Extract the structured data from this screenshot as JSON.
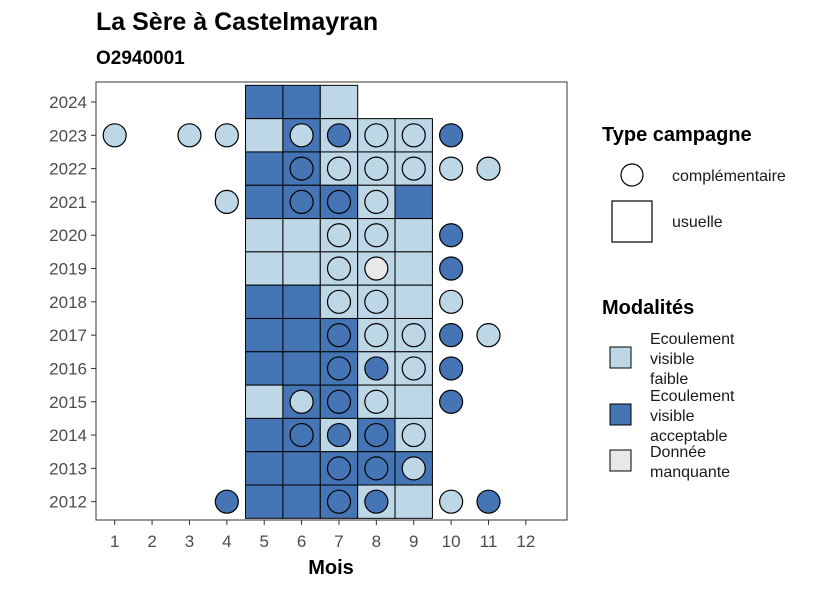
{
  "chart_data": {
    "type": "heatmap",
    "title": "La Sère à Castelmayran",
    "subtitle": "O2940001",
    "xlabel": "Mois",
    "ylabel": "",
    "x_ticks": [
      1,
      2,
      3,
      4,
      5,
      6,
      7,
      8,
      9,
      10,
      11,
      12
    ],
    "y_ticks": [
      2012,
      2013,
      2014,
      2015,
      2016,
      2017,
      2018,
      2019,
      2020,
      2021,
      2022,
      2023,
      2024
    ],
    "xlim": [
      0.5,
      13.1
    ],
    "ylim": [
      2011.45,
      2024.6
    ],
    "grid": false,
    "colors": {
      "Ecoulement visible faible": "#bdd7e7",
      "Ecoulement visible acceptable": "#4575b4",
      "Donnée manquante": "#e8e8e8"
    },
    "legend": {
      "shape_title": "Type campagne",
      "shapes": [
        {
          "key": "complementaire",
          "label": "complémentaire"
        },
        {
          "key": "usuelle",
          "label": "usuelle"
        }
      ],
      "fill_title": "Modalités",
      "fills": [
        {
          "key": "Ecoulement visible faible",
          "lines": [
            "Ecoulement",
            "visible",
            "faible"
          ]
        },
        {
          "key": "Ecoulement visible acceptable",
          "lines": [
            "Ecoulement",
            "visible",
            "acceptable"
          ]
        },
        {
          "key": "Donnée manquante",
          "lines": [
            "Donnée",
            "manquante"
          ]
        }
      ],
      "position": "right"
    },
    "usuelle": [
      {
        "year": 2024,
        "cells": [
          [
            5,
            "A"
          ],
          [
            6,
            "A"
          ],
          [
            7,
            "F"
          ]
        ]
      },
      {
        "year": 2023,
        "cells": [
          [
            5,
            "F"
          ],
          [
            6,
            "A"
          ],
          [
            7,
            "F"
          ],
          [
            8,
            "F"
          ],
          [
            9,
            "F"
          ]
        ]
      },
      {
        "year": 2022,
        "cells": [
          [
            5,
            "A"
          ],
          [
            6,
            "A"
          ],
          [
            7,
            "F"
          ],
          [
            8,
            "F"
          ],
          [
            9,
            "F"
          ]
        ]
      },
      {
        "year": 2021,
        "cells": [
          [
            5,
            "A"
          ],
          [
            6,
            "A"
          ],
          [
            7,
            "A"
          ],
          [
            8,
            "F"
          ],
          [
            9,
            "A"
          ]
        ]
      },
      {
        "year": 2020,
        "cells": [
          [
            5,
            "F"
          ],
          [
            6,
            "F"
          ],
          [
            7,
            "F"
          ],
          [
            8,
            "F"
          ],
          [
            9,
            "F"
          ]
        ]
      },
      {
        "year": 2019,
        "cells": [
          [
            5,
            "F"
          ],
          [
            6,
            "F"
          ],
          [
            7,
            "F"
          ],
          [
            8,
            "F"
          ],
          [
            9,
            "F"
          ]
        ]
      },
      {
        "year": 2018,
        "cells": [
          [
            5,
            "A"
          ],
          [
            6,
            "A"
          ],
          [
            7,
            "F"
          ],
          [
            8,
            "F"
          ],
          [
            9,
            "F"
          ]
        ]
      },
      {
        "year": 2017,
        "cells": [
          [
            5,
            "A"
          ],
          [
            6,
            "A"
          ],
          [
            7,
            "A"
          ],
          [
            8,
            "F"
          ],
          [
            9,
            "F"
          ]
        ]
      },
      {
        "year": 2016,
        "cells": [
          [
            5,
            "A"
          ],
          [
            6,
            "A"
          ],
          [
            7,
            "A"
          ],
          [
            8,
            "F"
          ],
          [
            9,
            "F"
          ]
        ]
      },
      {
        "year": 2015,
        "cells": [
          [
            5,
            "F"
          ],
          [
            6,
            "A"
          ],
          [
            7,
            "A"
          ],
          [
            8,
            "F"
          ],
          [
            9,
            "F"
          ]
        ]
      },
      {
        "year": 2014,
        "cells": [
          [
            5,
            "A"
          ],
          [
            6,
            "A"
          ],
          [
            7,
            "F"
          ],
          [
            8,
            "A"
          ],
          [
            9,
            "F"
          ]
        ]
      },
      {
        "year": 2013,
        "cells": [
          [
            5,
            "A"
          ],
          [
            6,
            "A"
          ],
          [
            7,
            "A"
          ],
          [
            8,
            "A"
          ],
          [
            9,
            "A"
          ]
        ]
      },
      {
        "year": 2012,
        "cells": [
          [
            5,
            "A"
          ],
          [
            6,
            "A"
          ],
          [
            7,
            "A"
          ],
          [
            8,
            "F"
          ],
          [
            9,
            "F"
          ]
        ]
      }
    ],
    "complementaire": [
      {
        "year": 2023,
        "points": [
          [
            1,
            "F"
          ],
          [
            3,
            "F"
          ],
          [
            4,
            "F"
          ],
          [
            6,
            "F"
          ],
          [
            7,
            "A"
          ],
          [
            8,
            "F"
          ],
          [
            9,
            "F"
          ],
          [
            10,
            "A"
          ]
        ]
      },
      {
        "year": 2022,
        "points": [
          [
            6,
            "A"
          ],
          [
            7,
            "F"
          ],
          [
            8,
            "F"
          ],
          [
            9,
            "F"
          ],
          [
            10,
            "F"
          ],
          [
            11,
            "F"
          ]
        ]
      },
      {
        "year": 2021,
        "points": [
          [
            4,
            "F"
          ],
          [
            6,
            "A"
          ],
          [
            7,
            "A"
          ],
          [
            8,
            "F"
          ]
        ]
      },
      {
        "year": 2020,
        "points": [
          [
            7,
            "F"
          ],
          [
            8,
            "F"
          ],
          [
            10,
            "A"
          ]
        ]
      },
      {
        "year": 2019,
        "points": [
          [
            7,
            "F"
          ],
          [
            8,
            "M"
          ],
          [
            10,
            "A"
          ]
        ]
      },
      {
        "year": 2018,
        "points": [
          [
            7,
            "F"
          ],
          [
            8,
            "F"
          ],
          [
            10,
            "F"
          ]
        ]
      },
      {
        "year": 2017,
        "points": [
          [
            7,
            "A"
          ],
          [
            8,
            "F"
          ],
          [
            9,
            "F"
          ],
          [
            10,
            "A"
          ],
          [
            11,
            "F"
          ]
        ]
      },
      {
        "year": 2016,
        "points": [
          [
            7,
            "A"
          ],
          [
            8,
            "A"
          ],
          [
            9,
            "F"
          ],
          [
            10,
            "A"
          ]
        ]
      },
      {
        "year": 2015,
        "points": [
          [
            6,
            "F"
          ],
          [
            7,
            "A"
          ],
          [
            8,
            "F"
          ],
          [
            10,
            "A"
          ]
        ]
      },
      {
        "year": 2014,
        "points": [
          [
            6,
            "A"
          ],
          [
            7,
            "A"
          ],
          [
            8,
            "A"
          ],
          [
            9,
            "F"
          ]
        ]
      },
      {
        "year": 2013,
        "points": [
          [
            7,
            "A"
          ],
          [
            8,
            "A"
          ],
          [
            9,
            "F"
          ]
        ]
      },
      {
        "year": 2012,
        "points": [
          [
            4,
            "A"
          ],
          [
            7,
            "A"
          ],
          [
            8,
            "A"
          ],
          [
            10,
            "F"
          ],
          [
            11,
            "A"
          ]
        ]
      }
    ],
    "code_map": {
      "F": "Ecoulement visible faible",
      "A": "Ecoulement visible acceptable",
      "M": "Donnée manquante"
    }
  }
}
